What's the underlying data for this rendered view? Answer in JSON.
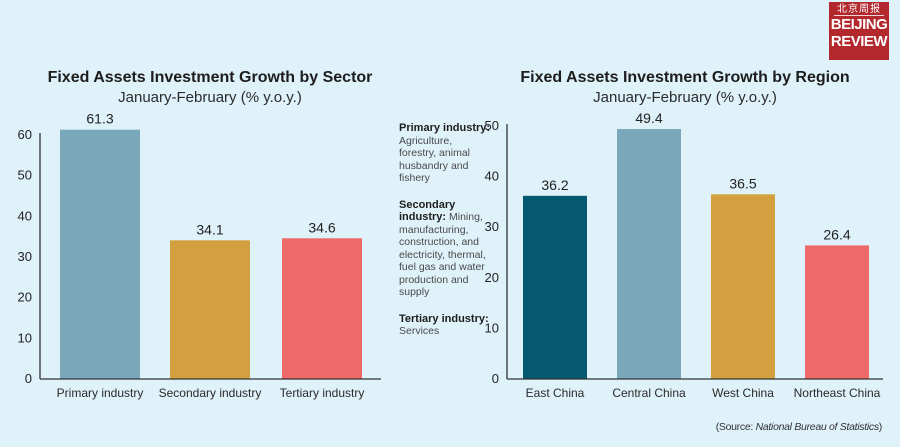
{
  "logo": {
    "chinese": "北京周报",
    "line1": "BEIJING",
    "line2": "REVIEW",
    "color": "#b3282d"
  },
  "chart_data": [
    {
      "type": "bar",
      "title": "Fixed Assets Investment Growth by Sector",
      "subtitle": "January-February (% y.o.y.)",
      "xlabel": "",
      "ylabel": "",
      "categories": [
        "Primary industry",
        "Secondary industry",
        "Tertiary industry"
      ],
      "values": [
        61.3,
        34.1,
        34.6
      ],
      "value_labels": [
        "61.3",
        "34.1",
        "34.6"
      ],
      "colors": [
        "#7aa8bb",
        "#d3a03f",
        "#ee6a69"
      ],
      "ylim": [
        0,
        60
      ],
      "yticks": [
        0,
        10,
        20,
        30,
        40,
        50,
        60
      ],
      "grid": false,
      "legend": "none"
    },
    {
      "type": "bar",
      "title": "Fixed Assets Investment Growth by Region",
      "subtitle": "January-February (% y.o.y.)",
      "xlabel": "",
      "ylabel": "",
      "categories": [
        "East China",
        "Central China",
        "West China",
        "Northeast China"
      ],
      "values": [
        36.2,
        49.4,
        36.5,
        26.4
      ],
      "value_labels": [
        "36.2",
        "49.4",
        "36.5",
        "26.4"
      ],
      "colors": [
        "#04586f",
        "#7aa8bb",
        "#d3a03f",
        "#ee6a69"
      ],
      "ylim": [
        0,
        50
      ],
      "yticks": [
        0,
        10,
        20,
        30,
        40,
        50
      ],
      "grid": false,
      "legend": "none"
    }
  ],
  "notes": [
    {
      "term": "Primary industry:",
      "desc": "Agriculture, forestry, animal husbandry and fishery"
    },
    {
      "term": "Secondary industry:",
      "desc": "Mining, manufacturing, construction, and electricity, thermal, fuel gas and water production and supply"
    },
    {
      "term": "Tertiary industry:",
      "desc": "Services"
    }
  ],
  "source": {
    "prefix": "(Source: ",
    "name": "National Bureau of Statistics",
    "suffix": ")"
  }
}
